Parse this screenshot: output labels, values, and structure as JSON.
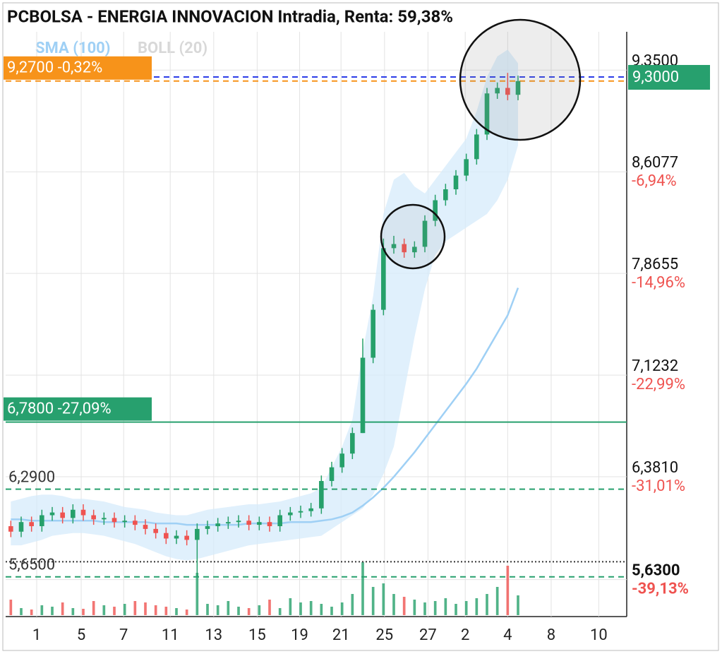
{
  "chart_data": {
    "type": "candlestick",
    "title": "PCBOLSA - ENERGIA INNOVACION Intradia, Renta: 59,38%",
    "legend": [
      {
        "name": "SMA (100)",
        "color": "#9fd0f5"
      },
      {
        "name": "BOLL (20)",
        "color": "#d8d8d8"
      }
    ],
    "xlim": [
      0,
      60
    ],
    "xticks": [
      {
        "value": 3.0,
        "label": "1"
      },
      {
        "value": 7.3,
        "label": "5"
      },
      {
        "value": 11.4,
        "label": "7"
      },
      {
        "value": 15.9,
        "label": "11"
      },
      {
        "value": 20.1,
        "label": "13"
      },
      {
        "value": 24.3,
        "label": "15"
      },
      {
        "value": 28.4,
        "label": "19"
      },
      {
        "value": 32.4,
        "label": "21"
      },
      {
        "value": 36.6,
        "label": "25"
      },
      {
        "value": 40.8,
        "label": "27"
      },
      {
        "value": 44.4,
        "label": "2"
      },
      {
        "value": 48.5,
        "label": "4"
      },
      {
        "value": 52.7,
        "label": "8"
      },
      {
        "value": 57.3,
        "label": "10"
      }
    ],
    "ylim": [
      5.36,
      9.63
    ],
    "yticks": [
      {
        "value": 9.35,
        "label": "9,3500"
      },
      {
        "value": 8.6077,
        "label": "8,6077"
      },
      {
        "value": 7.8655,
        "label": "7,8655"
      },
      {
        "value": 7.1232,
        "label": "7,1232"
      },
      {
        "value": 6.381,
        "label": "6,3810"
      },
      {
        "value": 5.63,
        "label": "5,6300"
      }
    ],
    "ytick_changes": [
      null,
      "-6,94%",
      "-14,96%",
      "-22,99%",
      "-31,01%",
      "-39,13%"
    ],
    "grid": true,
    "up_color": "#26a06a",
    "down_color": "#ef5350",
    "open": [
      6.02,
      5.98,
      6.05,
      6.02,
      6.1,
      6.12,
      6.08,
      6.14,
      6.1,
      6.07,
      6.08,
      6.05,
      6.06,
      6.03,
      6.0,
      5.97,
      5.93,
      5.95,
      5.92,
      6.0,
      6.02,
      6.04,
      6.05,
      6.06,
      6.03,
      6.05,
      6.02,
      6.1,
      6.12,
      6.13,
      6.15,
      6.35,
      6.45,
      6.55,
      6.7,
      7.25,
      7.6,
      8.05,
      8.08,
      8.02,
      8.06,
      8.25,
      8.4,
      8.48,
      8.58,
      8.7,
      8.88,
      9.18,
      9.22,
      9.17
    ],
    "high": [
      6.06,
      6.09,
      6.09,
      6.14,
      6.16,
      6.16,
      6.18,
      6.18,
      6.14,
      6.12,
      6.12,
      6.1,
      6.1,
      6.07,
      6.04,
      6.01,
      5.99,
      5.99,
      6.04,
      6.06,
      6.08,
      6.09,
      6.1,
      6.1,
      6.09,
      6.09,
      6.14,
      6.16,
      6.17,
      6.19,
      6.39,
      6.49,
      6.59,
      6.74,
      7.39,
      7.64,
      8.12,
      8.14,
      8.12,
      8.1,
      8.29,
      8.44,
      8.52,
      8.62,
      8.74,
      8.92,
      9.22,
      9.26,
      9.33,
      9.31
    ],
    "low": [
      5.94,
      5.94,
      5.98,
      5.98,
      6.06,
      6.04,
      6.04,
      6.06,
      6.03,
      6.03,
      6.01,
      6.01,
      5.99,
      5.96,
      5.93,
      5.89,
      5.89,
      5.88,
      5.65,
      5.96,
      5.98,
      6.0,
      6.01,
      5.99,
      5.99,
      5.98,
      5.98,
      6.06,
      6.08,
      6.09,
      6.11,
      6.31,
      6.41,
      6.51,
      6.7,
      7.21,
      7.56,
      8.01,
      7.98,
      7.98,
      8.02,
      8.21,
      8.36,
      8.44,
      8.54,
      8.66,
      8.84,
      9.14,
      9.13,
      9.13
    ],
    "close": [
      5.98,
      6.05,
      6.02,
      6.1,
      6.12,
      6.08,
      6.14,
      6.1,
      6.07,
      6.08,
      6.05,
      6.06,
      6.03,
      6.0,
      5.97,
      5.93,
      5.95,
      5.92,
      6.0,
      6.02,
      6.04,
      6.05,
      6.06,
      6.03,
      6.05,
      6.02,
      6.1,
      6.12,
      6.13,
      6.15,
      6.35,
      6.45,
      6.55,
      6.7,
      7.25,
      7.6,
      8.05,
      8.08,
      8.02,
      8.06,
      8.25,
      8.4,
      8.48,
      8.58,
      8.7,
      8.88,
      9.18,
      9.22,
      9.17,
      9.27
    ],
    "volume": [
      22,
      10,
      8,
      14,
      12,
      18,
      10,
      9,
      20,
      14,
      12,
      16,
      20,
      18,
      14,
      12,
      10,
      8,
      60,
      16,
      14,
      20,
      12,
      10,
      14,
      22,
      10,
      24,
      18,
      20,
      16,
      12,
      18,
      30,
      75,
      40,
      45,
      30,
      26,
      22,
      18,
      20,
      24,
      16,
      20,
      24,
      30,
      40,
      70,
      28
    ],
    "sma": [
      6.07,
      6.07,
      6.06,
      6.06,
      6.06,
      6.06,
      6.06,
      6.06,
      6.06,
      6.05,
      6.05,
      6.05,
      6.05,
      6.05,
      6.04,
      6.04,
      6.04,
      6.03,
      6.03,
      6.03,
      6.03,
      6.03,
      6.03,
      6.04,
      6.04,
      6.04,
      6.04,
      6.05,
      6.05,
      6.05,
      6.06,
      6.07,
      6.09,
      6.12,
      6.17,
      6.23,
      6.3,
      6.38,
      6.47,
      6.56,
      6.66,
      6.76,
      6.86,
      6.96,
      7.06,
      7.17,
      7.3,
      7.43,
      7.56,
      7.76
    ],
    "boll_upper": [
      6.2,
      6.22,
      6.24,
      6.25,
      6.25,
      6.24,
      6.22,
      6.22,
      6.21,
      6.2,
      6.18,
      6.16,
      6.15,
      6.14,
      6.12,
      6.11,
      6.1,
      6.1,
      6.12,
      6.14,
      6.15,
      6.16,
      6.17,
      6.18,
      6.18,
      6.19,
      6.2,
      6.22,
      6.24,
      6.26,
      6.3,
      6.45,
      6.6,
      6.8,
      7.3,
      7.7,
      8.3,
      8.55,
      8.6,
      8.5,
      8.45,
      8.55,
      8.65,
      8.75,
      8.85,
      9.05,
      9.3,
      9.45,
      9.5,
      9.4
    ],
    "boll_lower": [
      5.88,
      5.88,
      5.9,
      5.92,
      5.95,
      5.96,
      5.97,
      5.97,
      5.96,
      5.95,
      5.93,
      5.91,
      5.89,
      5.86,
      5.83,
      5.8,
      5.78,
      5.77,
      5.78,
      5.8,
      5.82,
      5.84,
      5.86,
      5.88,
      5.89,
      5.9,
      5.91,
      5.92,
      5.93,
      5.94,
      5.95,
      6.0,
      6.05,
      6.1,
      6.15,
      6.25,
      6.4,
      6.6,
      7.0,
      7.4,
      7.75,
      8.0,
      8.1,
      8.15,
      8.2,
      8.25,
      8.3,
      8.4,
      8.55,
      8.8
    ],
    "levels": [
      {
        "value": 9.3,
        "label": "9,3000",
        "color": "#2b3ce8",
        "style": "dashed",
        "label_style": "box-right",
        "box_color": "#27a06e"
      },
      {
        "value": 9.27,
        "label": "9,2700 -0,32%",
        "color": "#f7931a",
        "style": "dashed",
        "label_style": "box-left",
        "box_color": "#f7931a"
      },
      {
        "value": 6.78,
        "label": "6,7800 -27,09%",
        "color": "#27a06e",
        "style": "solid",
        "label_style": "box-left",
        "box_color": "#27a06e"
      },
      {
        "value": 6.29,
        "label": "6,2900",
        "color": "#27a06e",
        "style": "dashed",
        "label_style": "text-left"
      },
      {
        "value": 5.65,
        "label": "5,6500",
        "color": "#27a06e",
        "style": "dashed",
        "label_style": "text-left"
      },
      {
        "value": 5.76,
        "color": "#333333",
        "style": "dotted"
      }
    ]
  }
}
